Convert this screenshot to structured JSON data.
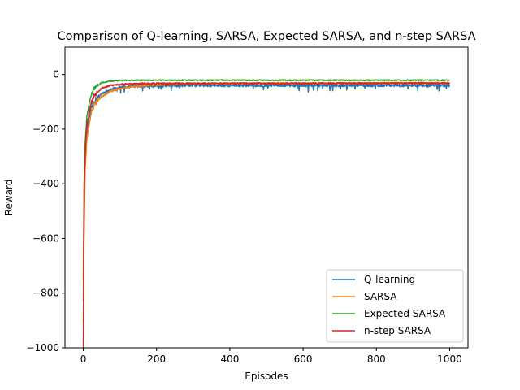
{
  "chart_data": {
    "type": "line",
    "title": "Comparison of Q-learning, SARSA, Expected SARSA, and n-step SARSA",
    "xlabel": "Episodes",
    "ylabel": "Reward",
    "xlim": [
      -50,
      1050
    ],
    "ylim": [
      -1000,
      100
    ],
    "xticks": [
      0,
      200,
      400,
      600,
      800,
      1000
    ],
    "yticks": [
      -1000,
      -800,
      -600,
      -400,
      -200,
      0
    ],
    "ytick_labels": [
      "−1000",
      "−800",
      "−600",
      "−400",
      "−200",
      "0"
    ],
    "grid": false,
    "legend_position": "lower-right",
    "episodes": 1000,
    "series": [
      {
        "name": "Q-learning",
        "color": "#1f77b4",
        "curve": {
          "x": [
            0,
            2,
            5,
            10,
            20,
            30,
            50,
            75,
            100,
            150,
            200,
            300,
            1000
          ],
          "y": [
            -820,
            -500,
            -300,
            -200,
            -130,
            -95,
            -70,
            -55,
            -48,
            -43,
            -42,
            -40,
            -40
          ]
        },
        "noise": 5,
        "seed": 11
      },
      {
        "name": "SARSA",
        "color": "#ff7f0e",
        "curve": {
          "x": [
            0,
            2,
            5,
            10,
            20,
            30,
            50,
            75,
            100,
            150,
            200,
            300,
            1000
          ],
          "y": [
            -900,
            -600,
            -350,
            -230,
            -150,
            -110,
            -80,
            -62,
            -52,
            -42,
            -37,
            -33,
            -31
          ]
        },
        "noise": 3,
        "seed": 23
      },
      {
        "name": "Expected SARSA",
        "color": "#2ca02c",
        "curve": {
          "x": [
            0,
            2,
            5,
            10,
            20,
            30,
            50,
            75,
            100,
            150,
            200,
            300,
            1000
          ],
          "y": [
            -750,
            -400,
            -250,
            -150,
            -80,
            -50,
            -30,
            -24,
            -22,
            -21,
            -21,
            -21,
            -21
          ]
        },
        "noise": 2,
        "seed": 37
      },
      {
        "name": "n-step SARSA",
        "color": "#d62728",
        "curve": {
          "x": [
            0,
            1,
            3,
            6,
            10,
            20,
            30,
            50,
            75,
            100,
            150,
            200,
            300,
            1000
          ],
          "y": [
            -1000,
            -700,
            -400,
            -260,
            -180,
            -110,
            -75,
            -50,
            -40,
            -36,
            -34,
            -33,
            -33,
            -32
          ]
        },
        "noise": 3,
        "seed": 53
      }
    ]
  }
}
